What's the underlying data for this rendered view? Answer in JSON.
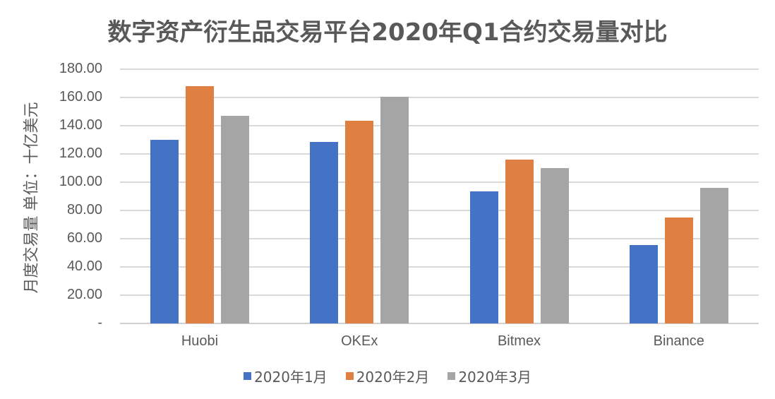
{
  "chart_data": {
    "type": "bar",
    "title": "数字资产衍生品交易平台2020年Q1合约交易量对比",
    "xlabel": "",
    "ylabel": "月度交易量 单位：十亿美元",
    "ylim": [
      0,
      180
    ],
    "yticks": [
      "-",
      "20.00",
      "40.00",
      "60.00",
      "80.00",
      "100.00",
      "120.00",
      "140.00",
      "160.00",
      "180.00"
    ],
    "grid": true,
    "legend_position": "bottom",
    "categories": [
      "Huobi",
      "OKEx",
      "Bitmex",
      "Binance"
    ],
    "series": [
      {
        "name": "2020年1月",
        "color": "#4472c4",
        "values": [
          130,
          128.5,
          93.5,
          55.5
        ]
      },
      {
        "name": "2020年2月",
        "color": "#e07f42",
        "values": [
          168,
          143.5,
          116,
          75
        ]
      },
      {
        "name": "2020年3月",
        "color": "#a5a5a5",
        "values": [
          147,
          160.5,
          110,
          96
        ]
      }
    ]
  }
}
